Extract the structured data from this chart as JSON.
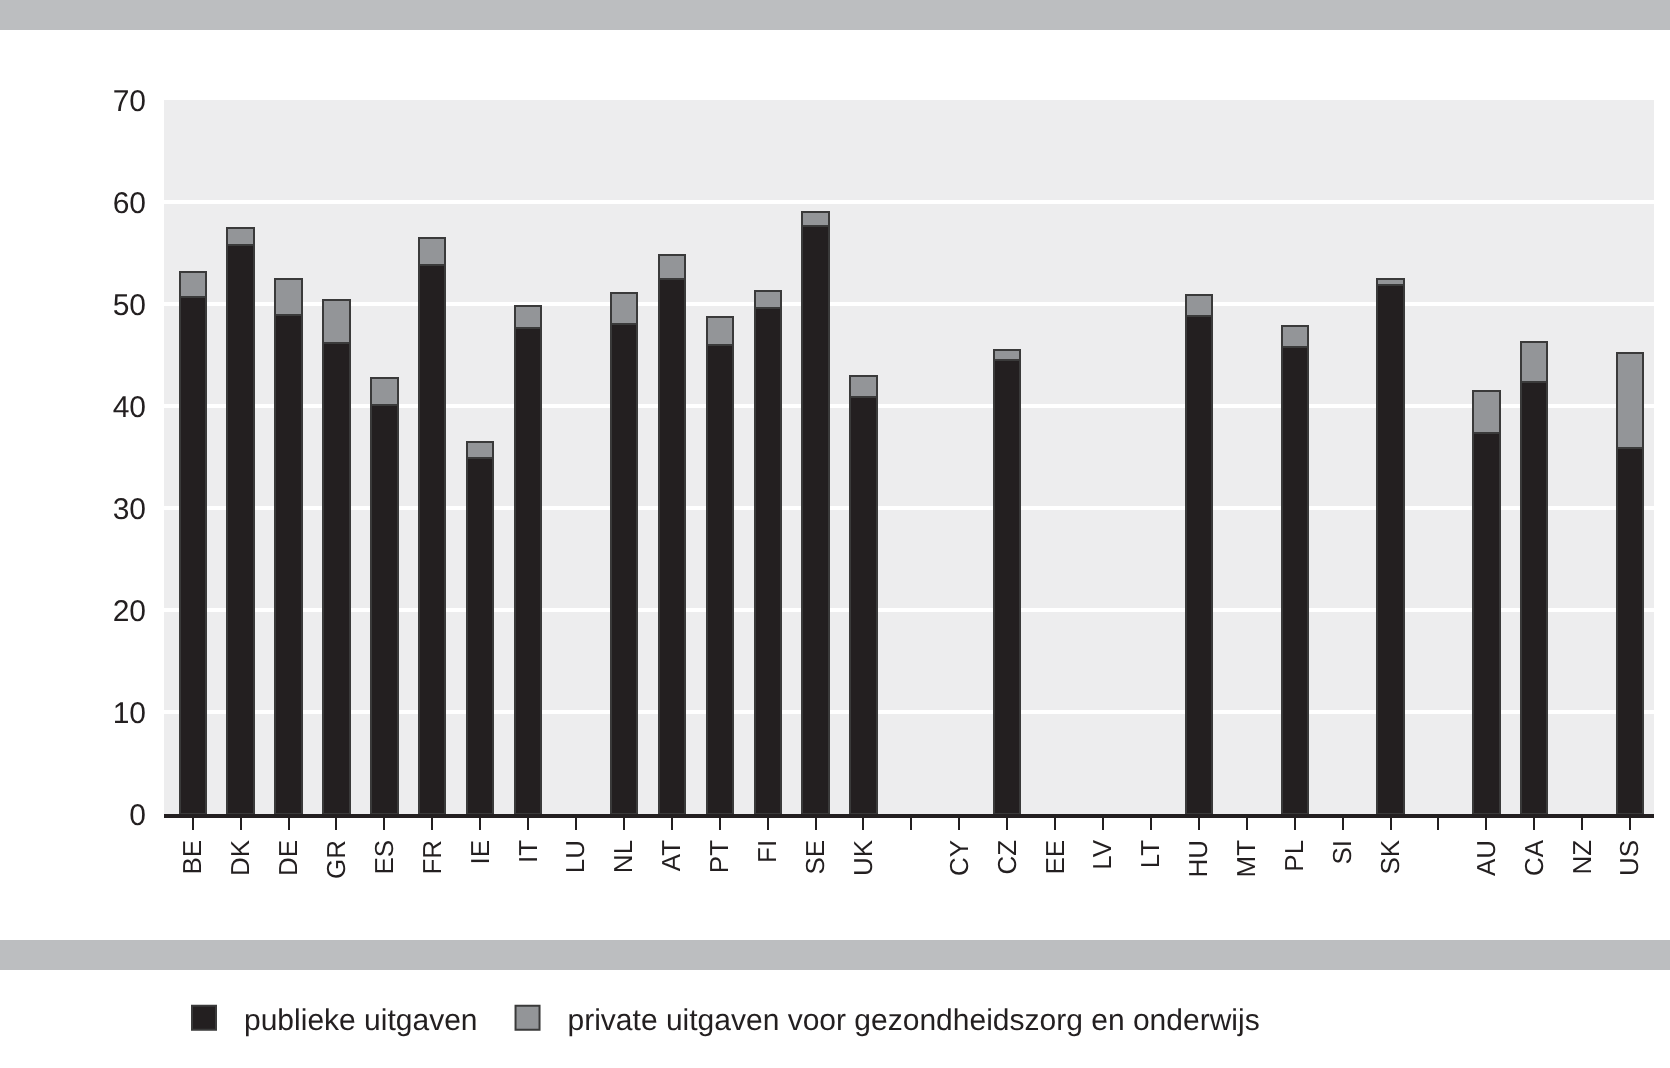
{
  "chart_data": {
    "type": "bar",
    "stacked": true,
    "categories": [
      "BE",
      "DK",
      "DE",
      "GR",
      "ES",
      "FR",
      "IE",
      "IT",
      "LU",
      "NL",
      "AT",
      "PT",
      "FI",
      "SE",
      "UK",
      null,
      "CY",
      "CZ",
      "EE",
      "LV",
      "LT",
      "HU",
      "MT",
      "PL",
      "SI",
      "SK",
      null,
      "AU",
      "CA",
      "NZ",
      "US"
    ],
    "series": [
      {
        "name": "publieke uitgaven",
        "color": "#231f20",
        "values": [
          50.7,
          55.8,
          48.9,
          46.2,
          40.1,
          53.8,
          34.9,
          47.6,
          null,
          48.0,
          52.5,
          46.0,
          49.6,
          57.6,
          40.9,
          null,
          null,
          44.5,
          null,
          null,
          null,
          48.8,
          null,
          45.8,
          null,
          51.9,
          null,
          37.4,
          42.4,
          null,
          35.9
        ]
      },
      {
        "name": "private uitgaven voor gezondheidszorg en onderwijs",
        "color": "#939598",
        "values": [
          2.4,
          1.7,
          3.6,
          4.2,
          2.6,
          2.7,
          1.6,
          2.2,
          null,
          3.1,
          2.3,
          2.7,
          1.7,
          1.4,
          2.0,
          null,
          null,
          1.0,
          null,
          null,
          null,
          2.1,
          null,
          2.0,
          null,
          0.6,
          null,
          4.1,
          3.9,
          null,
          9.3
        ]
      }
    ],
    "ylim": [
      0,
      70
    ],
    "yticks": [
      0,
      10,
      20,
      30,
      40,
      50,
      60,
      70
    ],
    "grid": "y",
    "legend": "bottom"
  }
}
